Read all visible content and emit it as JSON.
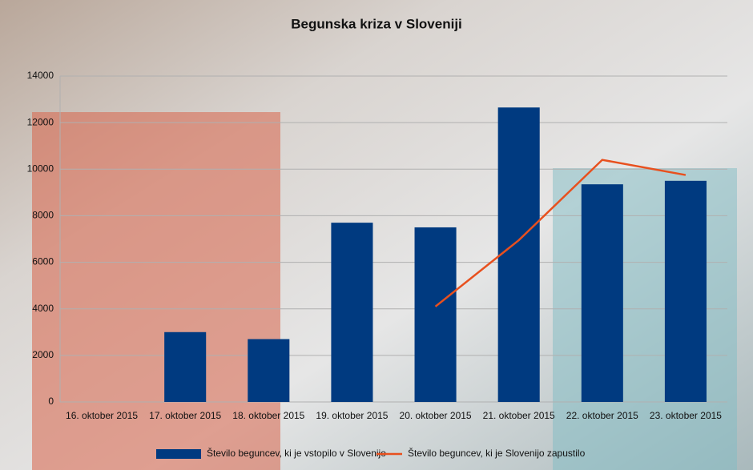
{
  "chart_data": {
    "type": "bar",
    "title": "Begunska kriza v Sloveniji",
    "categories": [
      "16. oktober 2015",
      "17. oktober 2015",
      "18. oktober 2015",
      "19. oktober 2015",
      "20. oktober 2015",
      "21. oktober 2015",
      "22. oktober 2015",
      "23. oktober 2015"
    ],
    "series": [
      {
        "name": "Število beguncev, ki je vstopilo v Slovenijo",
        "type": "bar",
        "color": "#003a80",
        "values": [
          null,
          3000,
          2700,
          7700,
          7500,
          12650,
          9350,
          9500
        ]
      },
      {
        "name": "Število beguncev, ki je Slovenijo zapustilo",
        "type": "line",
        "color": "#e8501e",
        "values": [
          null,
          null,
          null,
          null,
          4100,
          6950,
          10400,
          9750
        ]
      }
    ],
    "ylim": [
      0,
      14000
    ],
    "yticks": [
      0,
      2000,
      4000,
      6000,
      8000,
      10000,
      12000,
      14000
    ],
    "grid": true,
    "legend": "bottom"
  }
}
